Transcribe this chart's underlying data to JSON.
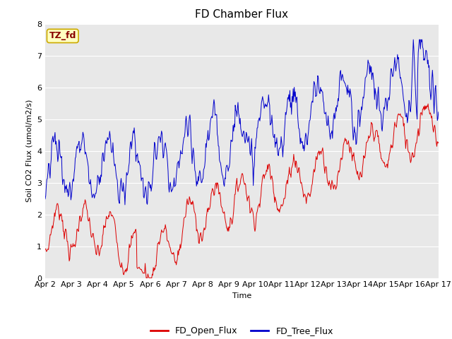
{
  "title": "FD Chamber Flux",
  "xlabel": "Time",
  "ylabel": "Soil CO2 Flux (umol/m2/s)",
  "ylim": [
    0.0,
    8.0
  ],
  "yticks": [
    0.0,
    1.0,
    2.0,
    3.0,
    4.0,
    5.0,
    6.0,
    7.0,
    8.0
  ],
  "xtick_labels": [
    "Apr 2",
    "Apr 3",
    "Apr 4",
    "Apr 5",
    "Apr 6",
    "Apr 7",
    "Apr 8",
    "Apr 9",
    "Apr 10",
    "Apr 11",
    "Apr 12",
    "Apr 13",
    "Apr 14",
    "Apr 15",
    "Apr 16",
    "Apr 17"
  ],
  "annotation_text": "TZ_fd",
  "annotation_facecolor": "#FFFFC0",
  "annotation_edgecolor": "#CCAA00",
  "annotation_textcolor": "#880000",
  "line_red_color": "#DD0000",
  "line_blue_color": "#0000CC",
  "legend_red_label": "FD_Open_Flux",
  "legend_blue_label": "FD_Tree_Flux",
  "plot_bg_color": "#E8E8E8",
  "fig_bg_color": "#FFFFFF",
  "grid_color": "#FFFFFF",
  "title_fontsize": 11,
  "axis_label_fontsize": 8,
  "tick_fontsize": 8,
  "legend_fontsize": 9
}
